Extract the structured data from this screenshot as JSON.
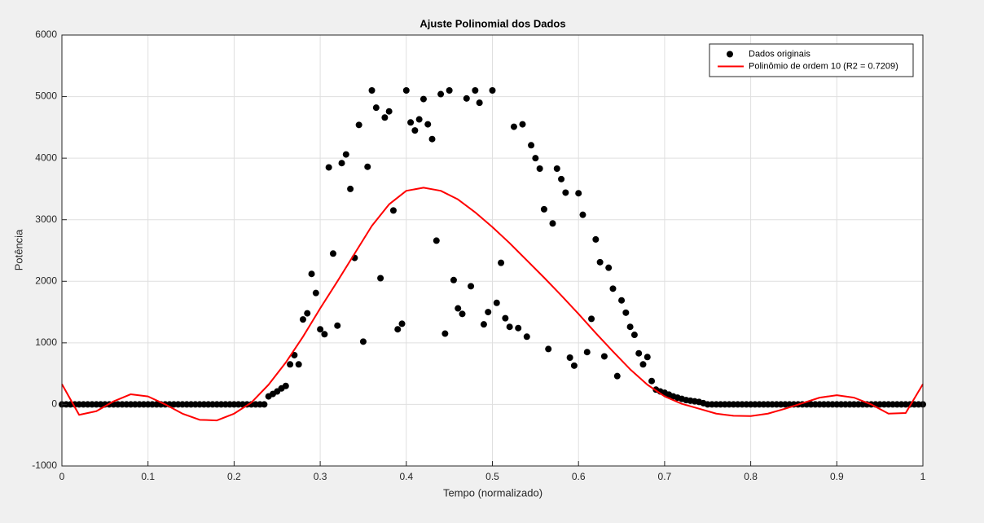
{
  "chart_data": {
    "type": "scatter",
    "title": "Ajuste Polinomial dos Dados",
    "xlabel": "Tempo (normalizado)",
    "ylabel": "Potência",
    "xlim": [
      0,
      1
    ],
    "ylim": [
      -1000,
      6000
    ],
    "xticks": [
      0,
      0.1,
      0.2,
      0.3,
      0.4,
      0.5,
      0.6,
      0.7,
      0.8,
      0.9,
      1
    ],
    "yticks": [
      -1000,
      0,
      1000,
      2000,
      3000,
      4000,
      5000,
      6000
    ],
    "grid": true,
    "legend": "northeast",
    "series": [
      {
        "name": "Dados originais",
        "type": "scatter",
        "color": "#000000",
        "x": [
          0,
          0.005,
          0.01,
          0.015,
          0.02,
          0.025,
          0.03,
          0.035,
          0.04,
          0.045,
          0.05,
          0.055,
          0.06,
          0.065,
          0.07,
          0.075,
          0.08,
          0.085,
          0.09,
          0.095,
          0.1,
          0.105,
          0.11,
          0.115,
          0.12,
          0.125,
          0.13,
          0.135,
          0.14,
          0.145,
          0.15,
          0.155,
          0.16,
          0.165,
          0.17,
          0.175,
          0.18,
          0.185,
          0.19,
          0.195,
          0.2,
          0.205,
          0.21,
          0.215,
          0.22,
          0.225,
          0.23,
          0.235,
          0.24,
          0.245,
          0.25,
          0.255,
          0.26,
          0.265,
          0.27,
          0.275,
          0.28,
          0.285,
          0.29,
          0.295,
          0.3,
          0.305,
          0.31,
          0.315,
          0.32,
          0.325,
          0.33,
          0.335,
          0.34,
          0.345,
          0.35,
          0.355,
          0.36,
          0.365,
          0.37,
          0.375,
          0.38,
          0.385,
          0.39,
          0.395,
          0.4,
          0.405,
          0.41,
          0.415,
          0.42,
          0.425,
          0.43,
          0.435,
          0.44,
          0.445,
          0.45,
          0.455,
          0.46,
          0.465,
          0.47,
          0.475,
          0.48,
          0.485,
          0.49,
          0.495,
          0.5,
          0.505,
          0.51,
          0.515,
          0.52,
          0.525,
          0.53,
          0.535,
          0.54,
          0.545,
          0.55,
          0.555,
          0.56,
          0.565,
          0.57,
          0.575,
          0.58,
          0.585,
          0.59,
          0.595,
          0.6,
          0.605,
          0.61,
          0.615,
          0.62,
          0.625,
          0.63,
          0.635,
          0.64,
          0.645,
          0.65,
          0.655,
          0.66,
          0.665,
          0.67,
          0.675,
          0.68,
          0.685,
          0.69,
          0.695,
          0.7,
          0.705,
          0.71,
          0.715,
          0.72,
          0.725,
          0.73,
          0.735,
          0.74,
          0.745,
          0.75,
          0.755,
          0.76,
          0.765,
          0.77,
          0.775,
          0.78,
          0.785,
          0.79,
          0.795,
          0.8,
          0.805,
          0.81,
          0.815,
          0.82,
          0.825,
          0.83,
          0.835,
          0.84,
          0.845,
          0.85,
          0.855,
          0.86,
          0.865,
          0.87,
          0.875,
          0.88,
          0.885,
          0.89,
          0.895,
          0.9,
          0.905,
          0.91,
          0.915,
          0.92,
          0.925,
          0.93,
          0.935,
          0.94,
          0.945,
          0.95,
          0.955,
          0.96,
          0.965,
          0.97,
          0.975,
          0.98,
          0.985,
          0.99,
          0.995,
          1
        ],
        "values": [
          0,
          0,
          0,
          0,
          0,
          0,
          0,
          0,
          0,
          0,
          0,
          0,
          0,
          0,
          0,
          0,
          0,
          0,
          0,
          0,
          0,
          0,
          0,
          0,
          0,
          0,
          0,
          0,
          0,
          0,
          0,
          0,
          0,
          0,
          0,
          0,
          0,
          0,
          0,
          0,
          0,
          0,
          0,
          0,
          0,
          0,
          0,
          0,
          130,
          170,
          210,
          260,
          300,
          650,
          800,
          650,
          1380,
          1480,
          2120,
          1810,
          1220,
          1140,
          3850,
          2450,
          1280,
          3920,
          4060,
          3500,
          2380,
          4540,
          1020,
          3860,
          5100,
          4820,
          2050,
          4660,
          4760,
          3150,
          1220,
          1310,
          5100,
          4580,
          4450,
          4630,
          4960,
          4550,
          4310,
          2660,
          5040,
          1150,
          5100,
          2020,
          1560,
          1470,
          4970,
          1920,
          5100,
          4900,
          1300,
          1500,
          5100,
          1650,
          2300,
          1400,
          1260,
          4510,
          1240,
          4550,
          1100,
          4210,
          4000,
          3830,
          3170,
          900,
          2940,
          3830,
          3660,
          3440,
          760,
          630,
          3430,
          3080,
          850,
          1390,
          2680,
          2310,
          780,
          2220,
          1880,
          460,
          1690,
          1490,
          1260,
          1130,
          830,
          650,
          770,
          380,
          240,
          210,
          190,
          160,
          130,
          110,
          90,
          70,
          60,
          50,
          40,
          20,
          0,
          0,
          0,
          0,
          0,
          0,
          0,
          0,
          0,
          0,
          0,
          0,
          0,
          0,
          0,
          0,
          0,
          0,
          0,
          0,
          0,
          0,
          0,
          0,
          0,
          0,
          0,
          0,
          0,
          0,
          0,
          0,
          0,
          0,
          0,
          0,
          0,
          0,
          0,
          0,
          0,
          0,
          0,
          0,
          0,
          0,
          0,
          0,
          0,
          0,
          0
        ]
      },
      {
        "name": "Polinômio de ordem 10 (R2 = 0.7209)",
        "type": "line",
        "color": "#ff0000",
        "x": [
          0,
          0.02,
          0.04,
          0.06,
          0.08,
          0.1,
          0.12,
          0.14,
          0.16,
          0.18,
          0.2,
          0.22,
          0.24,
          0.26,
          0.28,
          0.3,
          0.32,
          0.34,
          0.36,
          0.38,
          0.4,
          0.42,
          0.44,
          0.46,
          0.48,
          0.5,
          0.52,
          0.54,
          0.56,
          0.58,
          0.6,
          0.62,
          0.64,
          0.66,
          0.68,
          0.7,
          0.72,
          0.74,
          0.76,
          0.78,
          0.8,
          0.82,
          0.84,
          0.86,
          0.88,
          0.9,
          0.92,
          0.94,
          0.96,
          0.98,
          1
        ],
        "values": [
          330,
          -170,
          -110,
          50,
          165,
          130,
          0,
          -150,
          -250,
          -260,
          -150,
          30,
          320,
          680,
          1100,
          1560,
          2000,
          2450,
          2900,
          3250,
          3470,
          3520,
          3470,
          3330,
          3120,
          2880,
          2620,
          2340,
          2060,
          1770,
          1470,
          1160,
          860,
          570,
          320,
          130,
          10,
          -70,
          -150,
          -185,
          -190,
          -150,
          -70,
          20,
          110,
          150,
          110,
          0,
          -150,
          -140,
          330
        ]
      }
    ]
  }
}
